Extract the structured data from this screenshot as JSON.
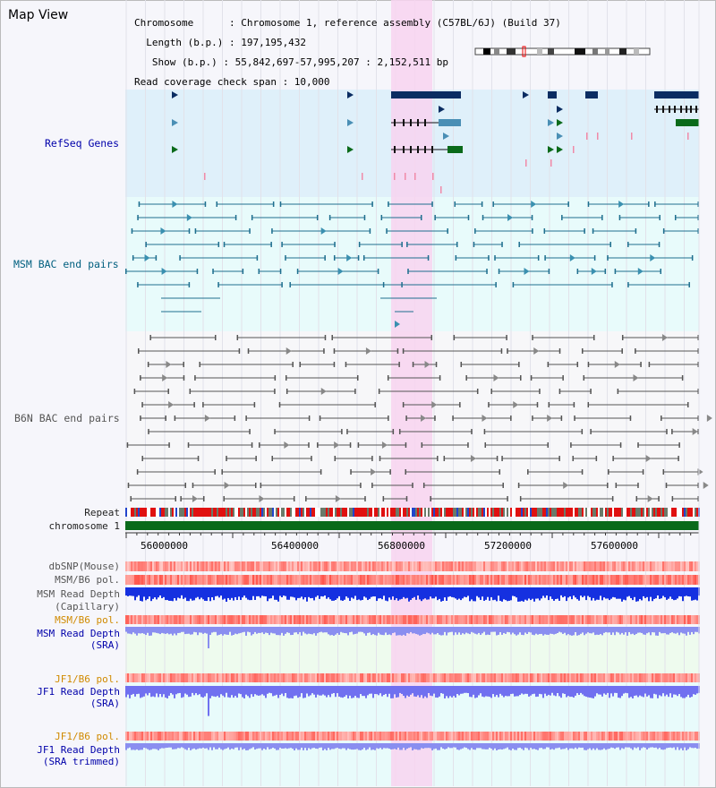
{
  "view": {
    "title": "Map View",
    "info_lines": [
      "Chromosome      : Chromosome 1, reference assembly (C57BL/6J) (Build 37)",
      "  Length (b.p.) : 197,195,432",
      "   Show (b.p.) : 55,842,697-57,995,207 : 2,152,511 bp",
      "Read coverage check span : 10,000"
    ]
  },
  "tracks": {
    "refseq": "RefSeq Genes",
    "msm_bac": "MSM BAC end pairs",
    "b6n_bac": "B6N BAC end pairs",
    "repeat": "Repeat",
    "chromosome": "chromosome 1",
    "dbsnp": "dbSNP(Mouse)",
    "msm_b6_pol_1": "MSM/B6 pol.",
    "msm_read_depth_cap_1": "MSM Read Depth",
    "msm_read_depth_cap_2": "(Capillary)",
    "msm_b6_pol_2": "MSM/B6 pol.",
    "msm_read_depth_sra_1": "MSM Read Depth",
    "msm_read_depth_sra_2": "(SRA)",
    "jf1_b6_pol_1": "JF1/B6 pol.",
    "jf1_read_depth_1": "JF1 Read Depth",
    "jf1_read_depth_2": "(SRA)",
    "jf1_b6_pol_2": "JF1/B6 pol.",
    "jf1_read_depth_trim_1": "JF1 Read Depth",
    "jf1_read_depth_trim_2": "(SRA trimmed)"
  },
  "axis_ticks": [
    "56000000",
    "56400000",
    "56800000",
    "57200000",
    "57600000"
  ],
  "colors": {
    "refseq_bg": "#dff0fa",
    "highlight": "#f8d3f0",
    "gene_dark": "#0b2d62",
    "gene_green": "#0a6a1a",
    "repeat_red": "#e01010",
    "chrom_green": "#0a6a1a"
  }
}
